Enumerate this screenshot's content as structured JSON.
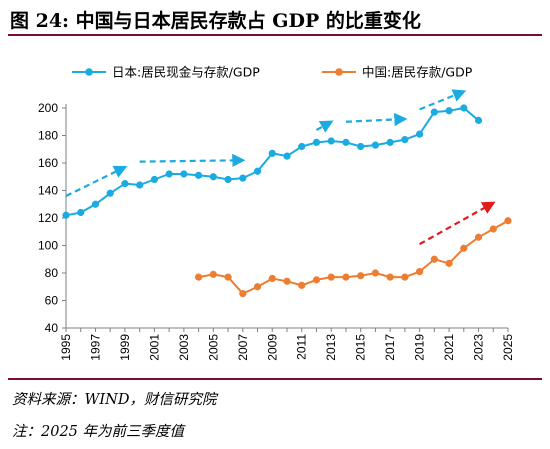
{
  "title": "图 24:  中国与日本居民存款占 GDP 的比重变化",
  "source": "资料来源：WIND，财信研究院",
  "note": "注：2025 年为前三季度值",
  "chart_data": {
    "type": "line",
    "x": [
      1995,
      1996,
      1997,
      1998,
      1999,
      2000,
      2001,
      2002,
      2003,
      2004,
      2005,
      2006,
      2007,
      2008,
      2009,
      2010,
      2011,
      2012,
      2013,
      2014,
      2015,
      2016,
      2017,
      2018,
      2019,
      2020,
      2021,
      2022,
      2023,
      2024,
      2025
    ],
    "x_tick_labels": [
      "1995",
      "1997",
      "1999",
      "2001",
      "2003",
      "2005",
      "2007",
      "2009",
      "2011",
      "2013",
      "2015",
      "2017",
      "2019",
      "2021",
      "2023",
      "2025"
    ],
    "ylim": [
      40,
      200
    ],
    "y_ticks": [
      "40",
      "60",
      "80",
      "100",
      "120",
      "140",
      "160",
      "180",
      "200"
    ],
    "grid": false,
    "legend": "top",
    "series": [
      {
        "name": "日本:居民现金与存款/GDP",
        "color": "#1aabe0",
        "values": [
          122,
          124,
          130,
          138,
          145,
          144,
          148,
          152,
          152,
          151,
          150,
          148,
          149,
          154,
          167,
          165,
          172,
          175,
          176,
          175,
          172,
          173,
          175,
          177,
          181,
          197,
          198,
          200,
          191,
          null,
          null
        ]
      },
      {
        "name": "中国:居民存款/GDP",
        "color": "#ed7d31",
        "values": [
          null,
          null,
          null,
          null,
          null,
          null,
          null,
          null,
          null,
          77,
          79,
          77,
          65,
          70,
          76,
          74,
          71,
          75,
          77,
          77,
          78,
          80,
          77,
          77,
          81,
          90,
          87,
          98,
          106,
          112,
          118
        ]
      }
    ],
    "trend_arrows": [
      {
        "color": "#1aabe0",
        "from": [
          1995,
          136
        ],
        "to": [
          1999,
          157
        ]
      },
      {
        "color": "#1aabe0",
        "from": [
          2000,
          161
        ],
        "to": [
          2007,
          162
        ]
      },
      {
        "color": "#1aabe0",
        "from": [
          2012,
          184
        ],
        "to": [
          2013,
          190
        ]
      },
      {
        "color": "#1aabe0",
        "from": [
          2014,
          190
        ],
        "to": [
          2018,
          192
        ]
      },
      {
        "color": "#1aabe0",
        "from": [
          2019,
          199
        ],
        "to": [
          2022,
          212
        ]
      },
      {
        "color": "#e01c1c",
        "from": [
          2019,
          101
        ],
        "to": [
          2024,
          131
        ]
      }
    ]
  }
}
